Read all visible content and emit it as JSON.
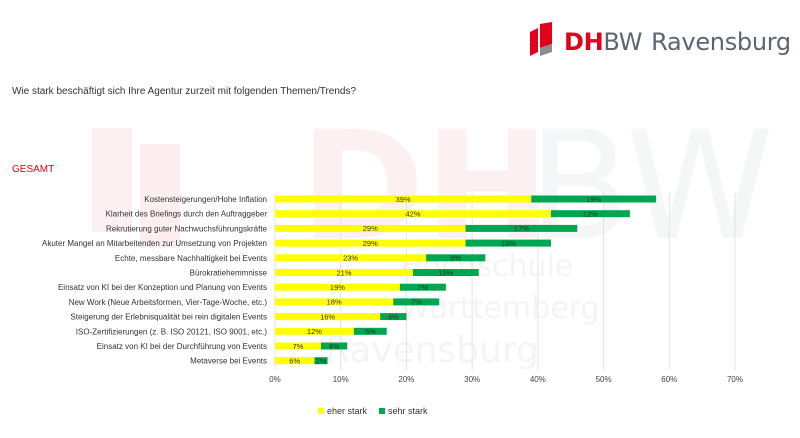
{
  "header": {
    "logo_dh": "DH",
    "logo_bw": "BW",
    "logo_city": "Ravensburg",
    "watermark": [
      "Hochschule",
      "Württemberg",
      "Ravensburg"
    ]
  },
  "colors": {
    "brand_red": "#e2001a",
    "brand_grey": "#5c6670",
    "eher_stark": "#ffff00",
    "sehr_stark": "#00a650"
  },
  "question": "Wie stark beschäftigt sich Ihre Agentur zurzeit mit folgenden Themen/Trends?",
  "segment_label": "GESAMT",
  "chart_data": {
    "type": "bar",
    "orientation": "horizontal",
    "stacked": true,
    "title": "",
    "xlabel": "",
    "ylabel": "",
    "categories": [
      "Kostensteigerungen/Hohe Inflation",
      "Klarheit des Briefings durch den Auftraggeber",
      "Rekrutierung guter Nachwuchsführungskräfte",
      "Akuter Mangel an Mitarbeitenden zur Umsetzung von Projekten",
      "Echte, messbare Nachhaltigkeit bei Events",
      "Bürokratiehemmnisse",
      "Einsatz von KI bei der Konzeption und Planung von Events",
      "New Work (Neue Arbeitsformen, Vier-Tage-Woche, etc.)",
      "Steigerung der Erlebnisqualität bei rein digitalen Events",
      "ISO-Zertifizierungen (z. B. ISO 20121, ISO 9001, etc.)",
      "Einsatz von KI bei der Durchführung von Events",
      "Metaverse bei Events"
    ],
    "series": [
      {
        "name": "eher stark",
        "color": "#ffff00",
        "values": [
          39,
          42,
          29,
          29,
          23,
          21,
          19,
          18,
          16,
          12,
          7,
          6
        ]
      },
      {
        "name": "sehr stark",
        "color": "#00a650",
        "values": [
          19,
          12,
          17,
          13,
          9,
          10,
          7,
          7,
          4,
          5,
          4,
          2
        ]
      }
    ],
    "xlim": [
      0,
      70
    ],
    "xticks": [
      "0%",
      "10%",
      "20%",
      "30%",
      "40%",
      "50%",
      "60%",
      "70%"
    ],
    "grid": true,
    "legend_position": "bottom"
  }
}
